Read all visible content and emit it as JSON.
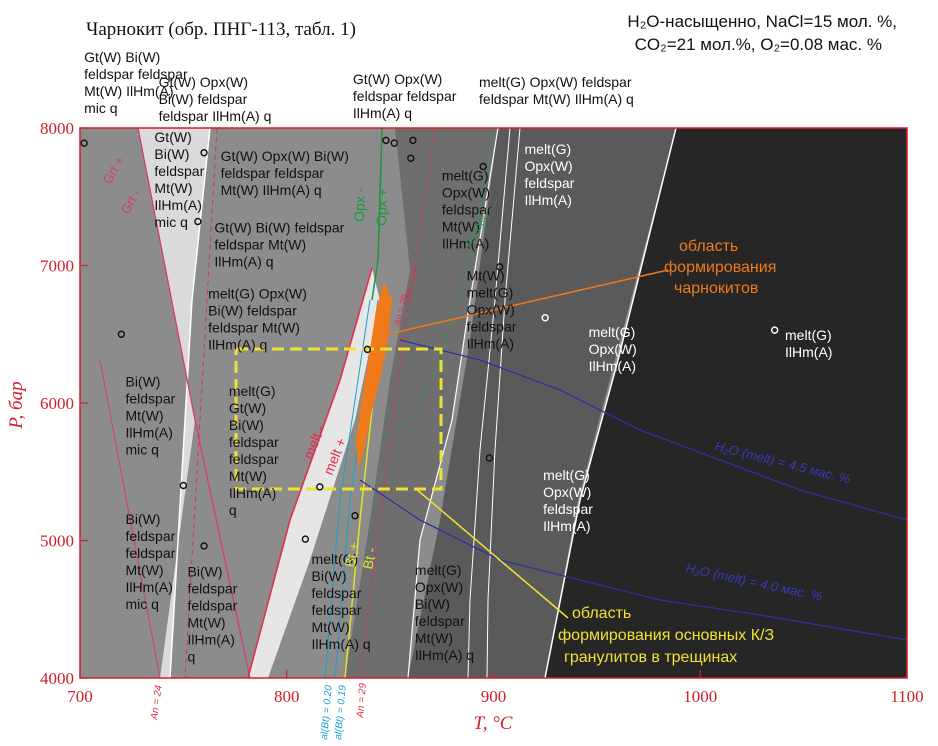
{
  "header": {
    "title": "Чарнокит (обр. ПНГ-113, табл. 1)",
    "conditions_line1": "H₂O-насыщенно, NaCl=15 мол. %,",
    "conditions_line2": "CO₂=21 мол.%, O₂=0.08 мас. %"
  },
  "chart_data": {
    "type": "phase-diagram (pseudosection)",
    "xlabel": "T, °C",
    "ylabel": "P, бар",
    "xlim": [
      700,
      1100
    ],
    "ylim": [
      4000,
      8000
    ],
    "x_ticks": [
      "700",
      "800",
      "900",
      "1000",
      "1100"
    ],
    "y_ticks": [
      "4000",
      "5000",
      "6000",
      "7000",
      "8000"
    ],
    "field_labels": [
      {
        "id": "f1",
        "T": 722,
        "P": 6120,
        "lines": [
          "Bi(W)",
          "feldspar",
          "Mt(W)",
          "IlHm(A)",
          "mic q"
        ]
      },
      {
        "id": "f2",
        "T": 722,
        "P": 5120,
        "lines": [
          "Bi(W)",
          "feldspar",
          "feldspar",
          "Mt(W)",
          "IlHm(A)",
          "mic q"
        ]
      },
      {
        "id": "f3",
        "T": 752,
        "P": 4740,
        "lines": [
          "Bi(W)",
          "feldspar",
          "feldspar",
          "Mt(W)",
          "IlHm(A)",
          "q"
        ]
      },
      {
        "id": "f4",
        "T": 736,
        "P": 7900,
        "lines": [
          "Gt(W)",
          "Bi(W)",
          "feldspar",
          "Mt(W)",
          "IlHm(A)",
          "mic q"
        ]
      },
      {
        "id": "f5",
        "T": 702,
        "P": 8480,
        "lines": [
          "Gt(W) Bi(W)",
          "feldspar feldspar",
          "Mt(W) IlHm(A)",
          " mic q"
        ]
      },
      {
        "id": "f6",
        "T": 738,
        "P": 8300,
        "lines": [
          "Gt(W) Opx(W)",
          "Bi(W) feldspar",
          "feldspar IlHm(A) q"
        ]
      },
      {
        "id": "f7",
        "T": 768,
        "P": 7760,
        "lines": [
          "Gt(W) Opx(W) Bi(W)",
          "feldspar feldspar",
          "Mt(W) IlHm(A) q"
        ]
      },
      {
        "id": "f8",
        "T": 765,
        "P": 7240,
        "lines": [
          "Gt(W) Bi(W) feldspar",
          "feldspar Mt(W)",
          "IlHm(A) q"
        ]
      },
      {
        "id": "f9",
        "T": 832,
        "P": 8320,
        "lines": [
          "Gt(W) Opx(W)",
          "feldspar feldspar",
          "IlHm(A) q"
        ]
      },
      {
        "id": "f10",
        "T": 893,
        "P": 8300,
        "lines": [
          "melt(G) Opx(W) feldspar",
          "feldspar Mt(W) IlHm(A) q"
        ]
      },
      {
        "id": "f11",
        "T": 762,
        "P": 6760,
        "lines": [
          "melt(G) Opx(W)",
          "Bi(W) feldspar",
          "feldspar Mt(W)",
          "IlHm(A) q"
        ]
      },
      {
        "id": "f12",
        "T": 772,
        "P": 6050,
        "lines": [
          "melt(G)",
          "Gt(W)",
          "Bi(W)",
          "feldspar",
          "feldspar",
          "Mt(W)",
          "IlHm(A)",
          "q"
        ]
      },
      {
        "id": "f13",
        "T": 812,
        "P": 4830,
        "lines": [
          "melt(G)",
          "Bi(W)",
          "feldspar",
          "feldspar",
          "Mt(W)",
          "IlHm(A) q"
        ]
      },
      {
        "id": "f14",
        "T": 862,
        "P": 4750,
        "lines": [
          "melt(G)",
          "Opx(W)",
          "Bi(W)",
          "feldspar",
          "Mt(W)",
          "IlHm(A) q"
        ]
      },
      {
        "id": "f15",
        "T": 875,
        "P": 7620,
        "lines": [
          "melt(G)",
          "Opx(W)",
          "feldspar",
          "Mt(W)",
          "IlHm(A)"
        ]
      },
      {
        "id": "f16",
        "T": 887,
        "P": 6890,
        "lines": [
          "Mt(W)",
          "melt(G)",
          "Opx(W)",
          "feldspar",
          "IlHm(A)"
        ]
      },
      {
        "id": "f17",
        "T": 915,
        "P": 7810,
        "lines": [
          "melt(G)",
          "Opx(W)",
          "feldspar",
          "IlHm(A)"
        ]
      },
      {
        "id": "f18",
        "T": 946,
        "P": 6480,
        "lines": [
          "melt(G)",
          "Opx(W)",
          "IlHm(A)"
        ]
      },
      {
        "id": "f19",
        "T": 924,
        "P": 5440,
        "lines": [
          "melt(G)",
          "Opx(W)",
          "feldspar",
          "IlHm(A)"
        ]
      },
      {
        "id": "f20",
        "T": 1041,
        "P": 6460,
        "lines": [
          "melt(G)",
          "IlHm(A)"
        ]
      }
    ],
    "callouts": [
      {
        "id": "charnockite",
        "lines": [
          "область",
          "формирования",
          "чарнокитов"
        ],
        "color": "#f07a1a"
      },
      {
        "id": "granulite",
        "lines": [
          "область",
          "формирования основных К/З",
          "гранулитов в трещинах"
        ],
        "color": "#f0d020"
      }
    ],
    "reaction_labels": [
      {
        "id": "grt",
        "text": "Grt +",
        "color": "#d63a78"
      },
      {
        "id": "grtm",
        "text": "Grt -",
        "color": "#d63a78"
      },
      {
        "id": "opxm",
        "text": "Opx -",
        "color": "#1a9a3a"
      },
      {
        "id": "opxp",
        "text": "Opx +",
        "color": "#1a9a3a"
      },
      {
        "id": "meltm",
        "text": "melt -",
        "color": "#e0304a"
      },
      {
        "id": "meltp",
        "text": "melt +",
        "color": "#e0304a"
      },
      {
        "id": "btp",
        "text": "Bt +",
        "color": "#e0e030"
      },
      {
        "id": "btm",
        "text": "Bt -",
        "color": "#e0e030"
      },
      {
        "id": "an24",
        "text": "An = 24",
        "color": "#e0304a"
      },
      {
        "id": "an24b",
        "text": "An = 24",
        "color": "#e0304a"
      },
      {
        "id": "an29",
        "text": "An = 29",
        "color": "#e0304a"
      },
      {
        "id": "an29b",
        "text": "An = 29",
        "color": "#e0304a"
      },
      {
        "id": "al020",
        "text": "al(Bt) = 0.20",
        "color": "#1aa0d0"
      },
      {
        "id": "al019",
        "text": "al(Bt) = 0.19",
        "color": "#1aa0d0"
      },
      {
        "id": "fe",
        "text": "Fe3(Opx) = ...",
        "color": "#1a9a3a"
      },
      {
        "id": "h2o45",
        "text": "H₂O (melt) = 4.5 мас. %",
        "color": "#3030a0"
      },
      {
        "id": "h2o40",
        "text": "H₂O (melt) = 4.0 мас. %",
        "color": "#3030a0"
      }
    ],
    "grid": false,
    "colors": {
      "frame": "#d0202a",
      "light_field": "#dadada",
      "mid_field": "#8c8c8c",
      "dark_field": "#5c5c5c",
      "darkest_field": "#262626",
      "charnockite": "#f07a1a",
      "granulite_box": "#f0e030",
      "opx_line": "#1a9a3a",
      "water_isopleth": "#3030a0"
    }
  }
}
